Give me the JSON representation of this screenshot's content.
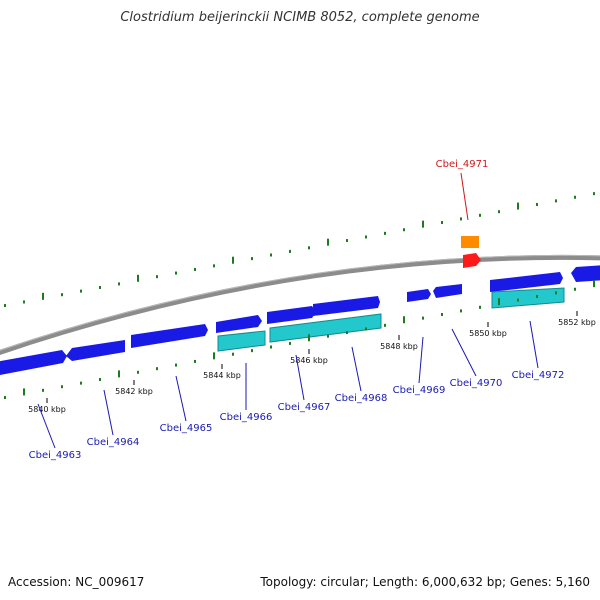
{
  "title": "Clostridium beijerinckii NCIMB 8052, complete genome",
  "footer": {
    "accession": "Accession: NC_009617",
    "summary": "Topology: circular; Length: 6,000,632 bp; Genes: 5,160"
  },
  "colors": {
    "cds": "#1a1ae6",
    "cds_alt": "#22c8cc",
    "trna": "#ff8c00",
    "rrna": "#ff1a1a",
    "backbone": "#8c8c8c",
    "gc_ticks": "#1e7a1e",
    "gene_label": "#1a1ab4",
    "highlight_label": "#cc1a1a"
  },
  "ruler": [
    {
      "label": "5840 kbp"
    },
    {
      "label": "5842 kbp"
    },
    {
      "label": "5844 kbp"
    },
    {
      "label": "5846 kbp"
    },
    {
      "label": "5848 kbp"
    },
    {
      "label": "5850 kbp"
    },
    {
      "label": "5852 kbp"
    }
  ],
  "genes": [
    {
      "label": "Cbei_4963",
      "type": "cds"
    },
    {
      "label": "Cbei_4964",
      "type": "cds"
    },
    {
      "label": "Cbei_4965",
      "type": "cds"
    },
    {
      "label": "Cbei_4966",
      "type": "cds"
    },
    {
      "label": "Cbei_4967",
      "type": "cds"
    },
    {
      "label": "Cbei_4968",
      "type": "cds"
    },
    {
      "label": "Cbei_4969",
      "type": "cds"
    },
    {
      "label": "Cbei_4970",
      "type": "cds"
    },
    {
      "label": "Cbei_4971",
      "type": "rna"
    },
    {
      "label": "Cbei_4972",
      "type": "cds"
    }
  ]
}
